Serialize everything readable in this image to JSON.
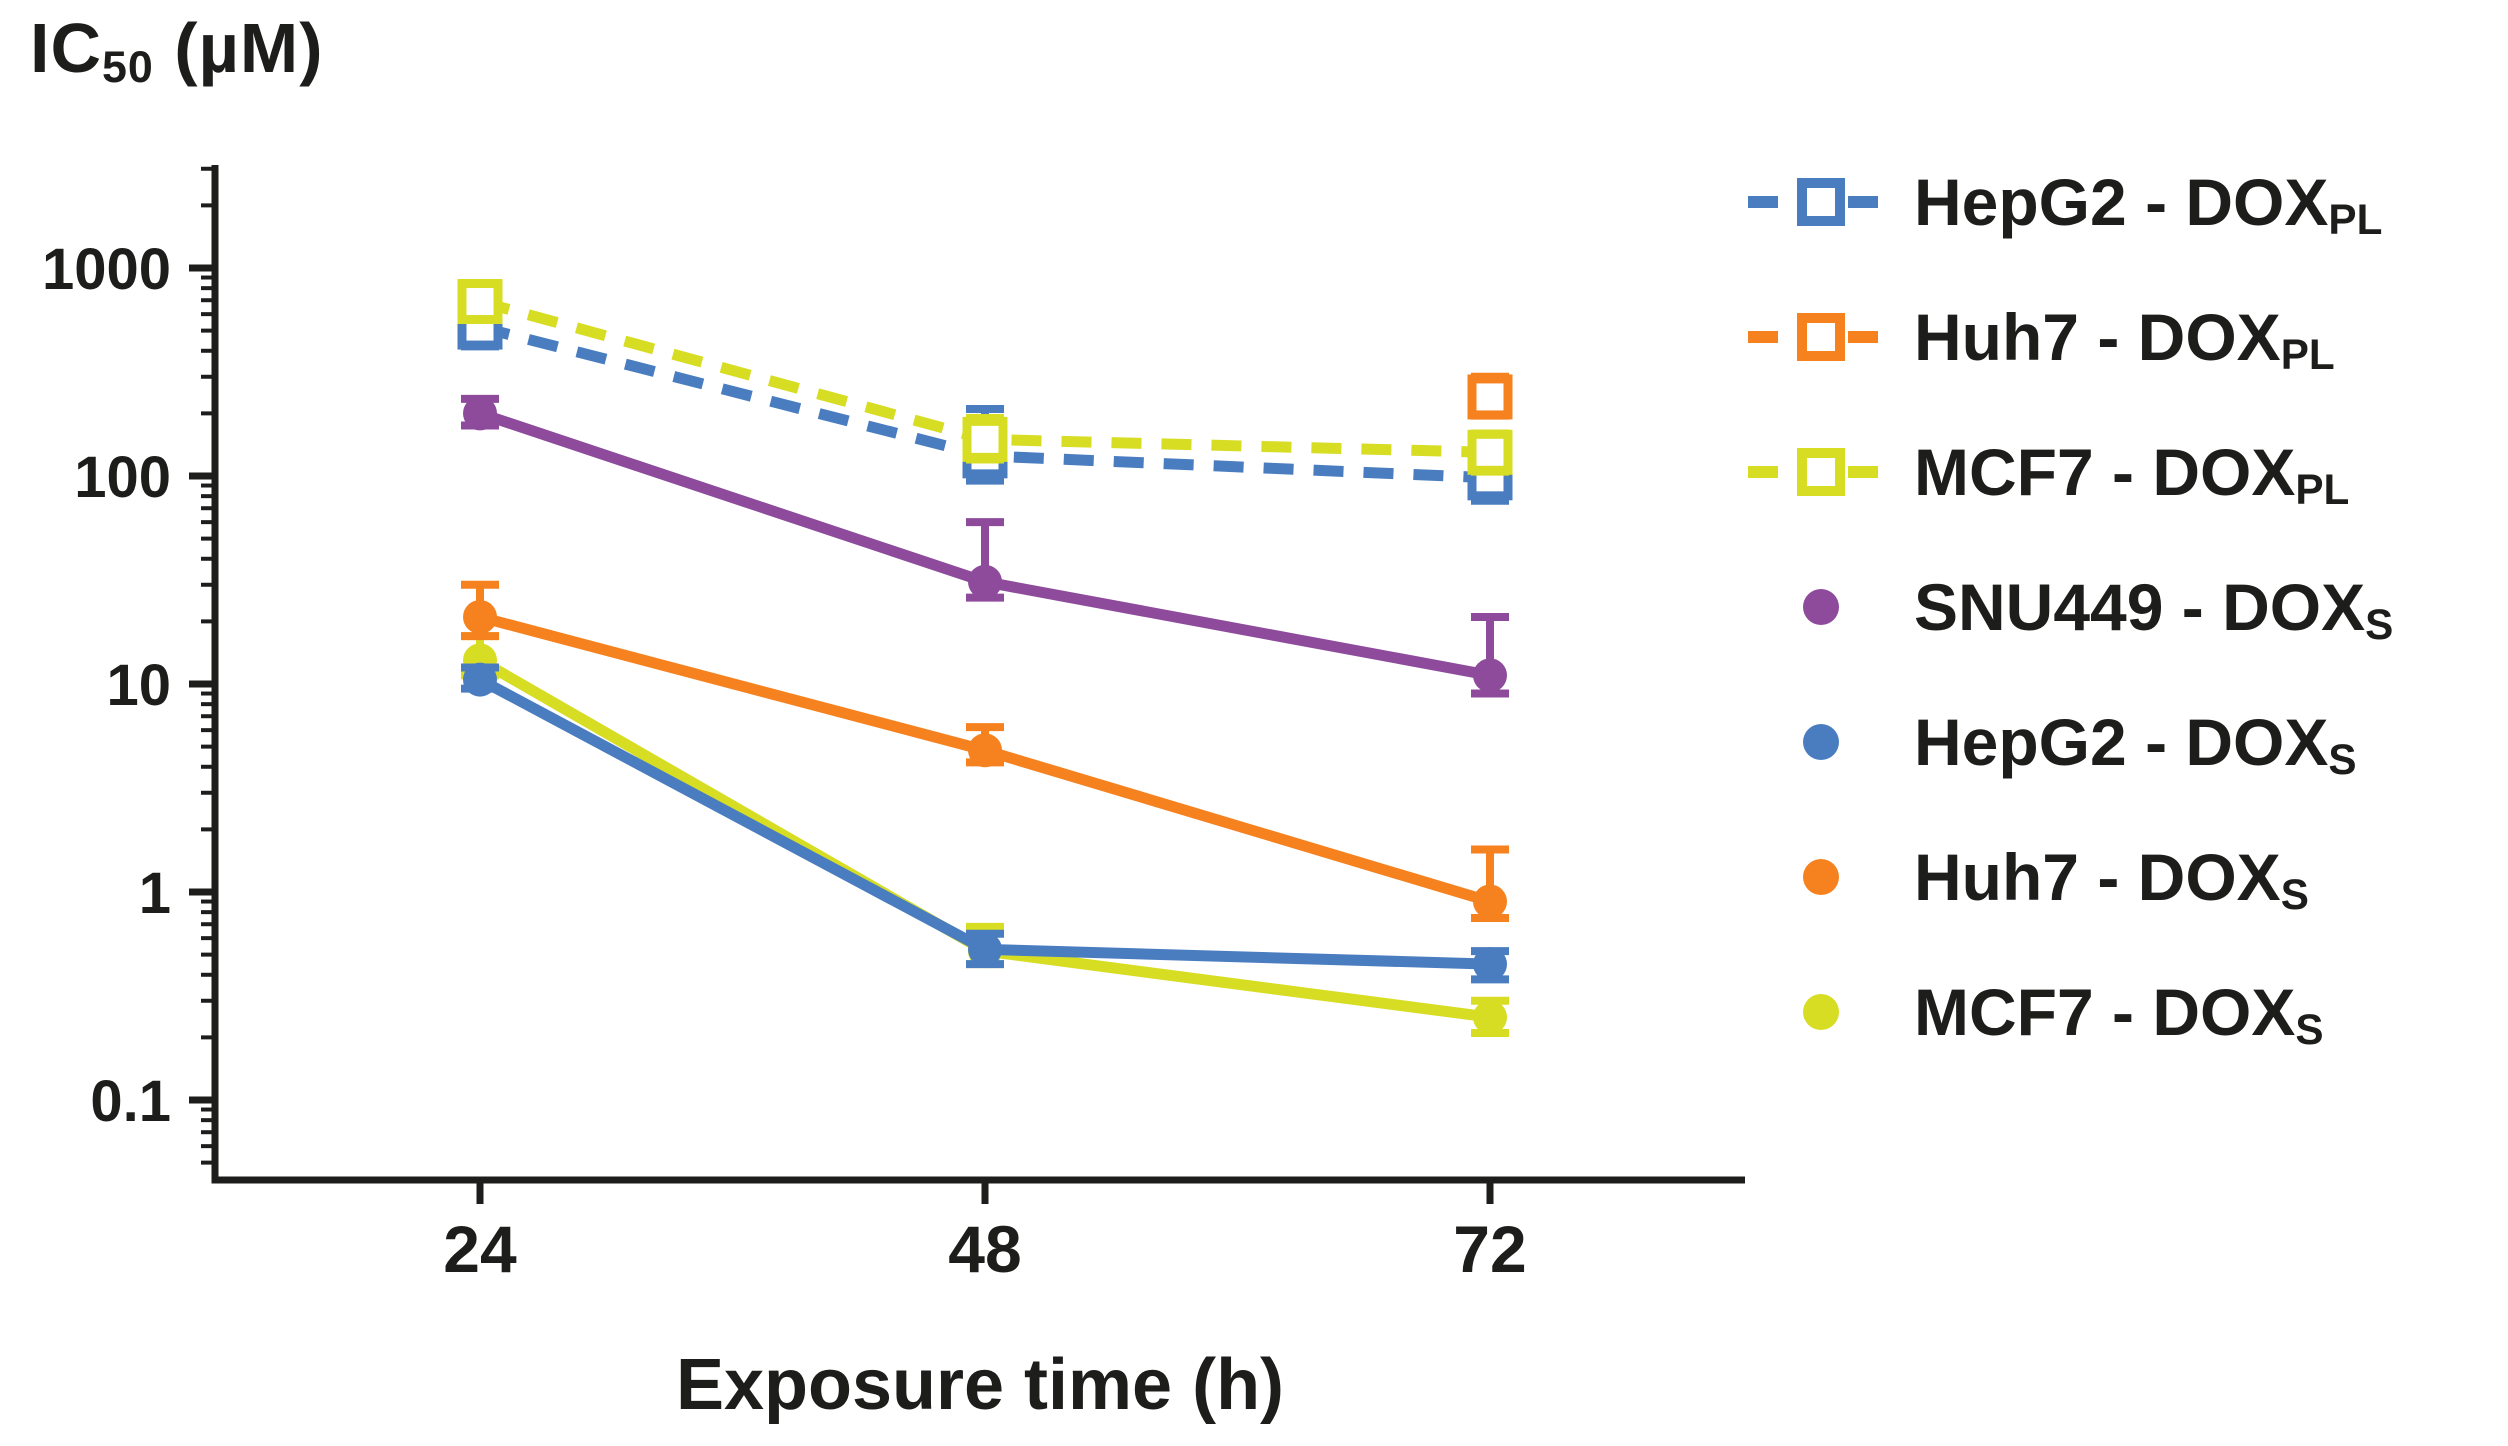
{
  "figure": {
    "y_axis_title": {
      "main": "IC",
      "sub": "50",
      "unit": " (µM)"
    },
    "x_axis_title": "Exposure time (h)"
  },
  "chart_data": {
    "type": "line",
    "xlabel": "Exposure time (h)",
    "ylabel": "IC50 (µM)",
    "yscale": "log",
    "ylim": [
      0.04,
      3200
    ],
    "grid": false,
    "legend_position": "right",
    "xticks": [
      {
        "v": 24,
        "label": "24"
      },
      {
        "v": 48,
        "label": "48"
      },
      {
        "v": 72,
        "label": "72"
      }
    ],
    "yticks": [
      {
        "v": 1000,
        "label": "1000"
      },
      {
        "v": 100,
        "label": "100"
      },
      {
        "v": 10,
        "label": "10"
      },
      {
        "v": 1,
        "label": "1"
      },
      {
        "v": 0.1,
        "label": "0.1"
      }
    ],
    "series": [
      {
        "name": "HepG2 - DOXPL",
        "label": "HepG2 - DOX",
        "label_sub": "PL",
        "color": "#4A7DC0",
        "line": "dashed",
        "marker": "open-square",
        "points": [
          {
            "x": 24,
            "y": 520,
            "err_lo": 420,
            "err_hi": 730
          },
          {
            "x": 48,
            "y": 125,
            "err_lo": 95,
            "err_hi": 210
          },
          {
            "x": 72,
            "y": 98,
            "err_lo": 76,
            "err_hi": 145
          }
        ]
      },
      {
        "name": "Huh7 - DOXPL",
        "label": "Huh7 - DOX",
        "label_sub": "PL",
        "color": "#F6821F",
        "line": "dashed",
        "marker": "open-square",
        "points": [
          {
            "x": 72,
            "y": 240,
            "err_lo": 195,
            "err_hi": 300
          }
        ]
      },
      {
        "name": "MCF7 - DOXPL",
        "label": "MCF7 - DOX",
        "label_sub": "PL",
        "color": "#D7DD23",
        "line": "dashed",
        "marker": "open-square",
        "points": [
          {
            "x": 24,
            "y": 690,
            "err_lo": 590,
            "err_hi": 810
          },
          {
            "x": 48,
            "y": 150,
            "err_lo": 120,
            "err_hi": 190
          },
          {
            "x": 72,
            "y": 130,
            "err_lo": 105,
            "err_hi": 160
          }
        ]
      },
      {
        "name": "SNU449 - DOXS",
        "label": "SNU449 - DOX",
        "label_sub": "S",
        "color": "#8E4B9C",
        "line": "solid",
        "marker": "circle",
        "points": [
          {
            "x": 24,
            "y": 200,
            "err_lo": 175,
            "err_hi": 235
          },
          {
            "x": 48,
            "y": 31,
            "err_lo": 26,
            "err_hi": 60
          },
          {
            "x": 72,
            "y": 11,
            "err_lo": 9,
            "err_hi": 21
          }
        ]
      },
      {
        "name": "HepG2 - DOXS",
        "label": "HepG2 - DOX",
        "label_sub": "S",
        "color": "#4A7DC0",
        "line": "solid",
        "marker": "circle",
        "points": [
          {
            "x": 24,
            "y": 10.5,
            "err_lo": 9.5,
            "err_hi": 12
          },
          {
            "x": 48,
            "y": 0.53,
            "err_lo": 0.45,
            "err_hi": 0.63
          },
          {
            "x": 72,
            "y": 0.45,
            "err_lo": 0.38,
            "err_hi": 0.52
          }
        ]
      },
      {
        "name": "Huh7 - DOXS",
        "label": "Huh7 - DOX",
        "label_sub": "S",
        "color": "#F6821F",
        "line": "solid",
        "marker": "circle",
        "points": [
          {
            "x": 24,
            "y": 21,
            "err_lo": 17,
            "err_hi": 30
          },
          {
            "x": 48,
            "y": 4.8,
            "err_lo": 4.2,
            "err_hi": 6.2
          },
          {
            "x": 72,
            "y": 0.9,
            "err_lo": 0.75,
            "err_hi": 1.6
          }
        ]
      },
      {
        "name": "MCF7 - DOXS",
        "label": "MCF7 - DOX",
        "label_sub": "S",
        "color": "#D7DD23",
        "line": "solid",
        "marker": "circle",
        "points": [
          {
            "x": 24,
            "y": 13,
            "err_lo": 11,
            "err_hi": 17
          },
          {
            "x": 48,
            "y": 0.52,
            "err_lo": 0.45,
            "err_hi": 0.68
          },
          {
            "x": 72,
            "y": 0.25,
            "err_lo": 0.21,
            "err_hi": 0.3
          }
        ]
      }
    ]
  }
}
